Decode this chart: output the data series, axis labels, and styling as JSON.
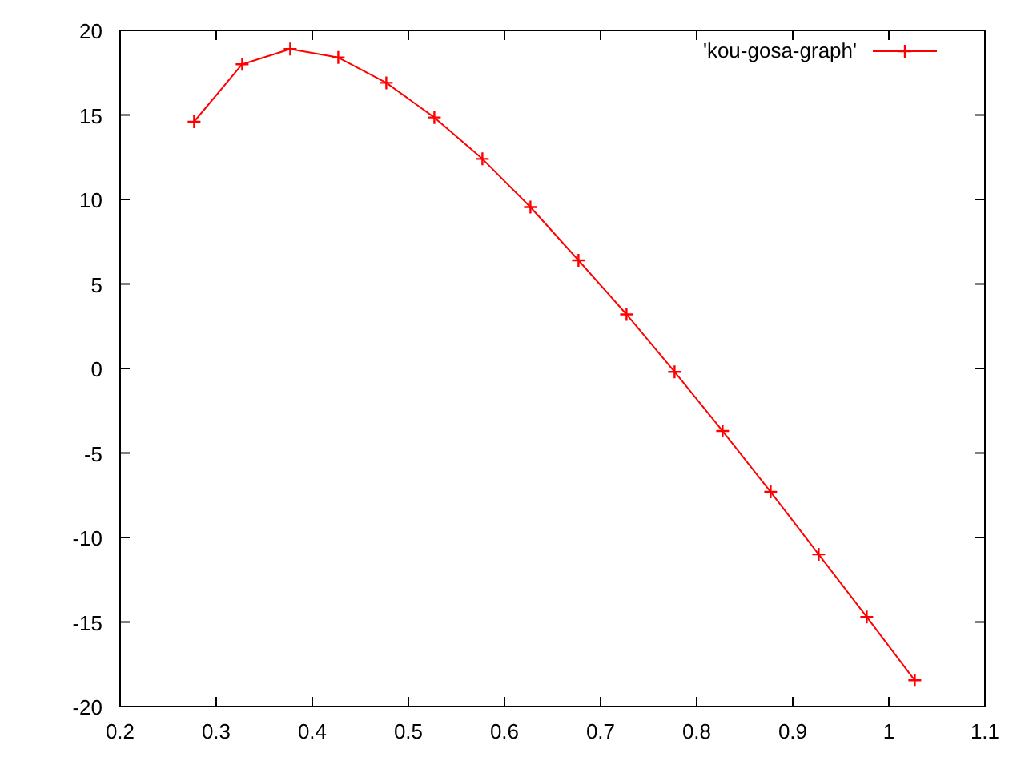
{
  "chart_data": {
    "type": "line",
    "x": [
      0.277,
      0.327,
      0.377,
      0.427,
      0.477,
      0.527,
      0.577,
      0.627,
      0.677,
      0.727,
      0.777,
      0.827,
      0.877,
      0.927,
      0.977,
      1.027
    ],
    "series": [
      {
        "name": "'kou-gosa-graph'",
        "color": "#ff0000",
        "values": [
          14.6,
          18.0,
          18.9,
          18.4,
          16.9,
          14.85,
          12.4,
          9.55,
          6.4,
          3.2,
          -0.2,
          -3.7,
          -7.3,
          -11.0,
          -14.7,
          -18.45
        ]
      }
    ],
    "xlim": [
      0.2,
      1.1
    ],
    "xticks": [
      0.2,
      0.3,
      0.4,
      0.5,
      0.6,
      0.7,
      0.8,
      0.9,
      1,
      1.1
    ],
    "ylim": [
      -20,
      20
    ],
    "yticks": [
      -20,
      -15,
      -10,
      -5,
      0,
      5,
      10,
      15,
      20
    ],
    "legend": "top right",
    "marker": "cross",
    "grid": false
  }
}
